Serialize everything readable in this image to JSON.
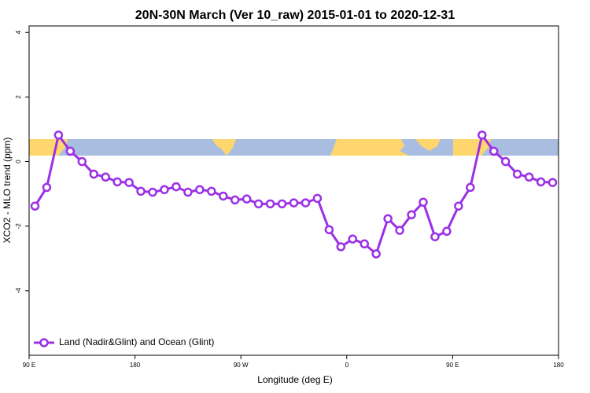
{
  "chart_data": {
    "type": "line",
    "title": "20N-30N March (Ver 10_raw)   2015-01-01 to 2020-12-31",
    "xlabel": "Longitude (deg E)",
    "ylabel": "XCO2 - MLO trend (ppm)",
    "x": [
      95,
      105,
      115,
      125,
      135,
      145,
      155,
      165,
      175,
      185,
      195,
      205,
      215,
      225,
      235,
      245,
      255,
      265,
      275,
      285,
      295,
      305,
      315,
      325,
      335,
      345,
      355,
      365,
      375,
      385,
      395,
      405,
      415,
      425,
      435,
      445,
      455,
      465,
      475,
      485,
      495,
      505,
      515,
      525,
      535
    ],
    "series": [
      {
        "name": "Land (Nadir&Glint) and Ocean (Glint)",
        "color": "#9b30e6",
        "values": [
          -1.38,
          -0.8,
          0.82,
          0.32,
          0.0,
          -0.39,
          -0.48,
          -0.63,
          -0.65,
          -0.92,
          -0.95,
          -0.87,
          -0.78,
          -0.95,
          -0.87,
          -0.92,
          -1.07,
          -1.19,
          -1.16,
          -1.31,
          -1.31,
          -1.31,
          -1.28,
          -1.28,
          -1.14,
          -2.11,
          -2.64,
          -2.4,
          -2.55,
          -2.86,
          -1.77,
          -2.13,
          -1.65,
          -1.26,
          -2.33,
          -2.16,
          -1.38,
          -0.8,
          0.82,
          0.32,
          0.0,
          -0.39,
          -0.48,
          -0.63,
          -0.65
        ]
      }
    ],
    "xlim": [
      90,
      540
    ],
    "xticks": [
      {
        "value": 90,
        "label": "90 E"
      },
      180,
      {
        "value": 270,
        "label": "90 W"
      },
      {
        "value": 360,
        "label": "0"
      },
      {
        "value": 450,
        "label": "90 E"
      },
      {
        "value": 540,
        "label": "180"
      }
    ],
    "ylim": [
      -6,
      4.2
    ],
    "yticks": [
      -4,
      -2,
      0,
      2,
      4
    ],
    "legend": "lower left",
    "grid": false
  }
}
